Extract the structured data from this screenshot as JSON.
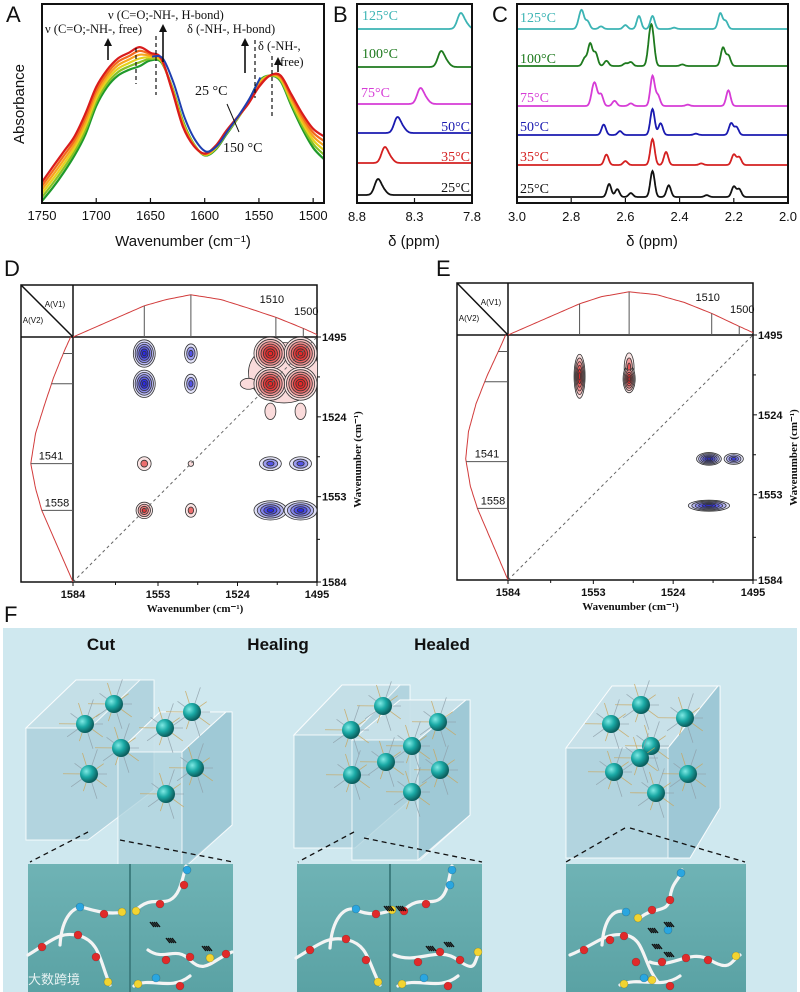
{
  "panels": {
    "A": "A",
    "B": "B",
    "C": "C",
    "D": "D",
    "E": "E",
    "F": "F"
  },
  "panel_a": {
    "annotations": {
      "free_co": "ν (C=O;-NH-, free)",
      "hbond_co": "ν (C=O;-NH-, H-bond)",
      "hbond_nh": "δ (-NH-, H-bond)",
      "free_nh_1": "δ (-NH-,",
      "free_nh_2": "free)",
      "temp_low": "25 °C",
      "temp_high": "150 °C"
    }
  },
  "panel_f": {
    "titles": [
      "Cut",
      "Healing",
      "Healed"
    ]
  },
  "watermark": "大数跨境",
  "chart_data": [
    {
      "id": "A",
      "type": "line",
      "xlabel": "Wavenumber (cm⁻¹)",
      "ylabel": "Absorbance",
      "xlim": [
        1750,
        1490
      ],
      "ylim": [
        0,
        1
      ],
      "xticks": [
        "1750",
        "1700",
        "1650",
        "1600",
        "1550",
        "1500"
      ],
      "x": [
        1750,
        1740,
        1730,
        1720,
        1710,
        1700,
        1690,
        1680,
        1670,
        1660,
        1650,
        1640,
        1630,
        1620,
        1610,
        1600,
        1590,
        1580,
        1570,
        1560,
        1550,
        1540,
        1530,
        1520,
        1510,
        1500,
        1490
      ],
      "series": [
        {
          "name": "25 °C",
          "values": [
            0.0,
            0.07,
            0.15,
            0.24,
            0.35,
            0.5,
            0.6,
            0.66,
            0.69,
            0.71,
            0.74,
            0.73,
            0.6,
            0.42,
            0.3,
            0.24,
            0.27,
            0.35,
            0.43,
            0.52,
            0.63,
            0.66,
            0.63,
            0.5,
            0.38,
            0.28,
            0.22
          ]
        },
        {
          "name": "150 °C",
          "values": [
            0.1,
            0.18,
            0.26,
            0.34,
            0.46,
            0.6,
            0.69,
            0.75,
            0.78,
            0.81,
            0.78,
            0.75,
            0.58,
            0.39,
            0.29,
            0.25,
            0.29,
            0.37,
            0.44,
            0.51,
            0.6,
            0.66,
            0.66,
            0.56,
            0.46,
            0.38,
            0.34
          ]
        }
      ],
      "curve_colors": [
        "#1f9a2a",
        "#86c226",
        "#e6d21e",
        "#f7a51f",
        "#f26a1d",
        "#d91c1c"
      ]
    },
    {
      "id": "B",
      "type": "line",
      "xlabel": "δ (ppm)",
      "xlim": [
        8.8,
        7.8
      ],
      "xticks": [
        "8.8",
        "8.3",
        "7.8"
      ],
      "series": [
        {
          "name": "25°C",
          "color": "#111111",
          "peaks": [
            [
              8.62,
              1
            ],
            [
              8.57,
              0.3
            ]
          ]
        },
        {
          "name": "35°C",
          "color": "#d42020",
          "peaks": [
            [
              8.56,
              1
            ],
            [
              8.51,
              0.3
            ]
          ]
        },
        {
          "name": "50°C",
          "color": "#1a1ab0",
          "peaks": [
            [
              8.45,
              1
            ],
            [
              8.4,
              0.3
            ]
          ]
        },
        {
          "name": "75°C",
          "color": "#d63cd6",
          "peaks": [
            [
              8.25,
              1
            ],
            [
              8.2,
              0.3
            ]
          ]
        },
        {
          "name": "100°C",
          "color": "#1e7a1e",
          "peaks": [
            [
              8.07,
              1
            ],
            [
              8.02,
              0.3
            ]
          ]
        },
        {
          "name": "125°C",
          "color": "#3cb4b4",
          "peaks": [
            [
              7.9,
              1
            ],
            [
              7.85,
              0.3
            ]
          ]
        }
      ]
    },
    {
      "id": "C",
      "type": "line",
      "xlabel": "δ (ppm)",
      "xlim": [
        3.0,
        2.0
      ],
      "xticks": [
        "3.0",
        "2.8",
        "2.6",
        "2.4",
        "2.2",
        "2.0"
      ],
      "series": [
        {
          "name": "25°C",
          "color": "#111111",
          "peaks": [
            [
              2.66,
              0.5
            ],
            [
              2.63,
              0.3
            ],
            [
              2.58,
              0.15
            ],
            [
              2.5,
              1
            ],
            [
              2.44,
              0.45
            ],
            [
              2.3,
              0.07
            ],
            [
              2.2,
              0.4
            ],
            [
              2.18,
              0.3
            ]
          ]
        },
        {
          "name": "35°C",
          "color": "#d42020",
          "peaks": [
            [
              2.67,
              0.4
            ],
            [
              2.6,
              0.15
            ],
            [
              2.5,
              1
            ],
            [
              2.45,
              0.5
            ],
            [
              2.32,
              0.06
            ],
            [
              2.2,
              0.4
            ],
            [
              2.18,
              0.3
            ]
          ]
        },
        {
          "name": "50°C",
          "color": "#1a1ab0",
          "peaks": [
            [
              2.68,
              0.4
            ],
            [
              2.62,
              0.15
            ],
            [
              2.5,
              1
            ],
            [
              2.47,
              0.45
            ],
            [
              2.34,
              0.05
            ],
            [
              2.21,
              0.45
            ],
            [
              2.19,
              0.3
            ]
          ]
        },
        {
          "name": "75°C",
          "color": "#d63cd6",
          "peaks": [
            [
              2.72,
              0.5
            ],
            [
              2.71,
              0.6
            ],
            [
              2.69,
              0.45
            ],
            [
              2.64,
              0.2
            ],
            [
              2.58,
              0.1
            ],
            [
              2.5,
              1.15
            ],
            [
              2.48,
              0.4
            ],
            [
              2.37,
              0.05
            ],
            [
              2.22,
              0.6
            ]
          ]
        },
        {
          "name": "100°C",
          "color": "#1e7a1e",
          "peaks": [
            [
              2.75,
              0.3
            ],
            [
              2.73,
              0.85
            ],
            [
              2.71,
              0.5
            ],
            [
              2.67,
              0.2
            ],
            [
              2.6,
              0.1
            ],
            [
              2.58,
              0.15
            ],
            [
              2.51,
              0.9
            ],
            [
              2.5,
              1.05
            ],
            [
              2.39,
              0.06
            ],
            [
              2.24,
              0.7
            ],
            [
              2.22,
              0.4
            ]
          ]
        },
        {
          "name": "125°C",
          "color": "#3cb4b4",
          "peaks": [
            [
              2.77,
              0.25
            ],
            [
              2.76,
              0.6
            ],
            [
              2.74,
              0.3
            ],
            [
              2.69,
              0.1
            ],
            [
              2.6,
              0.15
            ],
            [
              2.55,
              0.5
            ],
            [
              2.5,
              0.5
            ],
            [
              2.42,
              0.05
            ],
            [
              2.25,
              0.6
            ],
            [
              2.23,
              0.3
            ]
          ]
        }
      ]
    },
    {
      "id": "D",
      "type": "heatmap",
      "xlabel": "Wavenumber (cm⁻¹)",
      "ylabel": "Wavenumber (cm⁻¹)",
      "range": [
        1584,
        1495
      ],
      "bottom_ticks": [
        "1584",
        "1553",
        "1524",
        "1495"
      ],
      "right_ticks": [
        "1495",
        "1524",
        "1553",
        "1584"
      ],
      "corner": {
        "top": "A(V1)",
        "bottom": "A(V2)"
      },
      "spectrum": {
        "x": [
          1584,
          1570,
          1558,
          1550,
          1541,
          1530,
          1520,
          1510,
          1500,
          1495
        ],
        "values": [
          0,
          0.35,
          0.65,
          0.78,
          0.88,
          0.78,
          0.6,
          0.41,
          0.18,
          0.05
        ]
      },
      "top_markers": [
        1558,
        1541,
        1510,
        1500
      ],
      "top_marker_labels": [
        "1510",
        "1500"
      ],
      "left_markers": [
        1501,
        1512,
        1541,
        1558
      ],
      "left_marker_labels": [
        "1541",
        "1558"
      ],
      "peaks": [
        {
          "x": 1558,
          "y": 1501,
          "sign": -1,
          "rx": 4,
          "ry": 5,
          "levels": 6
        },
        {
          "x": 1558,
          "y": 1512,
          "sign": -1,
          "rx": 4,
          "ry": 5,
          "levels": 6
        },
        {
          "x": 1541,
          "y": 1501,
          "sign": -1,
          "rx": 2.3,
          "ry": 3.5,
          "levels": 3
        },
        {
          "x": 1541,
          "y": 1512,
          "sign": -1,
          "rx": 2.3,
          "ry": 3.5,
          "levels": 3
        },
        {
          "x": 1507,
          "y": 1508,
          "sign": 1,
          "rx": 13,
          "ry": 11,
          "levels": 1
        },
        {
          "x": 1520,
          "y": 1512,
          "sign": 1,
          "rx": 3,
          "ry": 2,
          "levels": 1
        },
        {
          "x": 1512,
          "y": 1522,
          "sign": 1,
          "rx": 2,
          "ry": 3,
          "levels": 1
        },
        {
          "x": 1501,
          "y": 1522,
          "sign": 1,
          "rx": 2,
          "ry": 3,
          "levels": 1
        },
        {
          "x": 1512,
          "y": 1501,
          "sign": 1,
          "rx": 6,
          "ry": 6,
          "levels": 7
        },
        {
          "x": 1501,
          "y": 1501,
          "sign": 1,
          "rx": 6,
          "ry": 6,
          "levels": 7
        },
        {
          "x": 1512,
          "y": 1512,
          "sign": 1,
          "rx": 6,
          "ry": 6,
          "levels": 7
        },
        {
          "x": 1501,
          "y": 1512,
          "sign": 1,
          "rx": 6,
          "ry": 6,
          "levels": 7
        },
        {
          "x": 1558,
          "y": 1541,
          "sign": 1,
          "rx": 2.5,
          "ry": 2.5,
          "levels": 2
        },
        {
          "x": 1541,
          "y": 1541,
          "sign": 1,
          "rx": 1,
          "ry": 1,
          "levels": 1
        },
        {
          "x": 1512,
          "y": 1541,
          "sign": -1,
          "rx": 4,
          "ry": 2.5,
          "levels": 3
        },
        {
          "x": 1501,
          "y": 1541,
          "sign": -1,
          "rx": 4,
          "ry": 2.5,
          "levels": 3
        },
        {
          "x": 1558,
          "y": 1558,
          "sign": 1,
          "rx": 3,
          "ry": 3,
          "levels": 4
        },
        {
          "x": 1541,
          "y": 1558,
          "sign": 1,
          "rx": 2,
          "ry": 2.5,
          "levels": 2
        },
        {
          "x": 1512,
          "y": 1558,
          "sign": -1,
          "rx": 6,
          "ry": 3.5,
          "levels": 5
        },
        {
          "x": 1501,
          "y": 1558,
          "sign": -1,
          "rx": 6,
          "ry": 3.5,
          "levels": 5
        }
      ]
    },
    {
      "id": "E",
      "type": "heatmap",
      "xlabel": "Wavenumber (cm⁻¹)",
      "ylabel": "Wavenumber (cm⁻¹)",
      "range": [
        1584,
        1495
      ],
      "bottom_ticks": [
        "1584",
        "1553",
        "1524",
        "1495"
      ],
      "right_ticks": [
        "1495",
        "1524",
        "1553",
        "1584"
      ],
      "corner": {
        "top": "A(V1)",
        "bottom": "A(V2)"
      },
      "spectrum": {
        "x": [
          1584,
          1570,
          1558,
          1550,
          1540,
          1530,
          1520,
          1510,
          1500,
          1495
        ],
        "values": [
          0,
          0.35,
          0.65,
          0.8,
          0.9,
          0.84,
          0.68,
          0.45,
          0.18,
          0.05
        ]
      },
      "top_markers": [
        1558,
        1540,
        1510,
        1500
      ],
      "top_marker_labels": [
        "1510",
        "1500"
      ],
      "left_markers": [
        1501,
        1512,
        1541,
        1558
      ],
      "left_marker_labels": [
        "1541",
        "1558"
      ],
      "peaks": [
        {
          "x": 1558,
          "y": 1510,
          "sign": 1,
          "rx": 2,
          "ry": 8,
          "levels": 6
        },
        {
          "x": 1540,
          "y": 1507,
          "sign": 1,
          "rx": 1.8,
          "ry": 5.5,
          "levels": 3
        },
        {
          "x": 1540,
          "y": 1511,
          "sign": 1,
          "rx": 2.2,
          "ry": 5,
          "levels": 6
        },
        {
          "x": 1511,
          "y": 1540,
          "sign": -1,
          "rx": 4.5,
          "ry": 2.3,
          "levels": 6
        },
        {
          "x": 1502,
          "y": 1540,
          "sign": -1,
          "rx": 3.5,
          "ry": 2,
          "levels": 4
        },
        {
          "x": 1511,
          "y": 1557,
          "sign": -1,
          "rx": 7.5,
          "ry": 2,
          "levels": 6
        }
      ]
    }
  ]
}
